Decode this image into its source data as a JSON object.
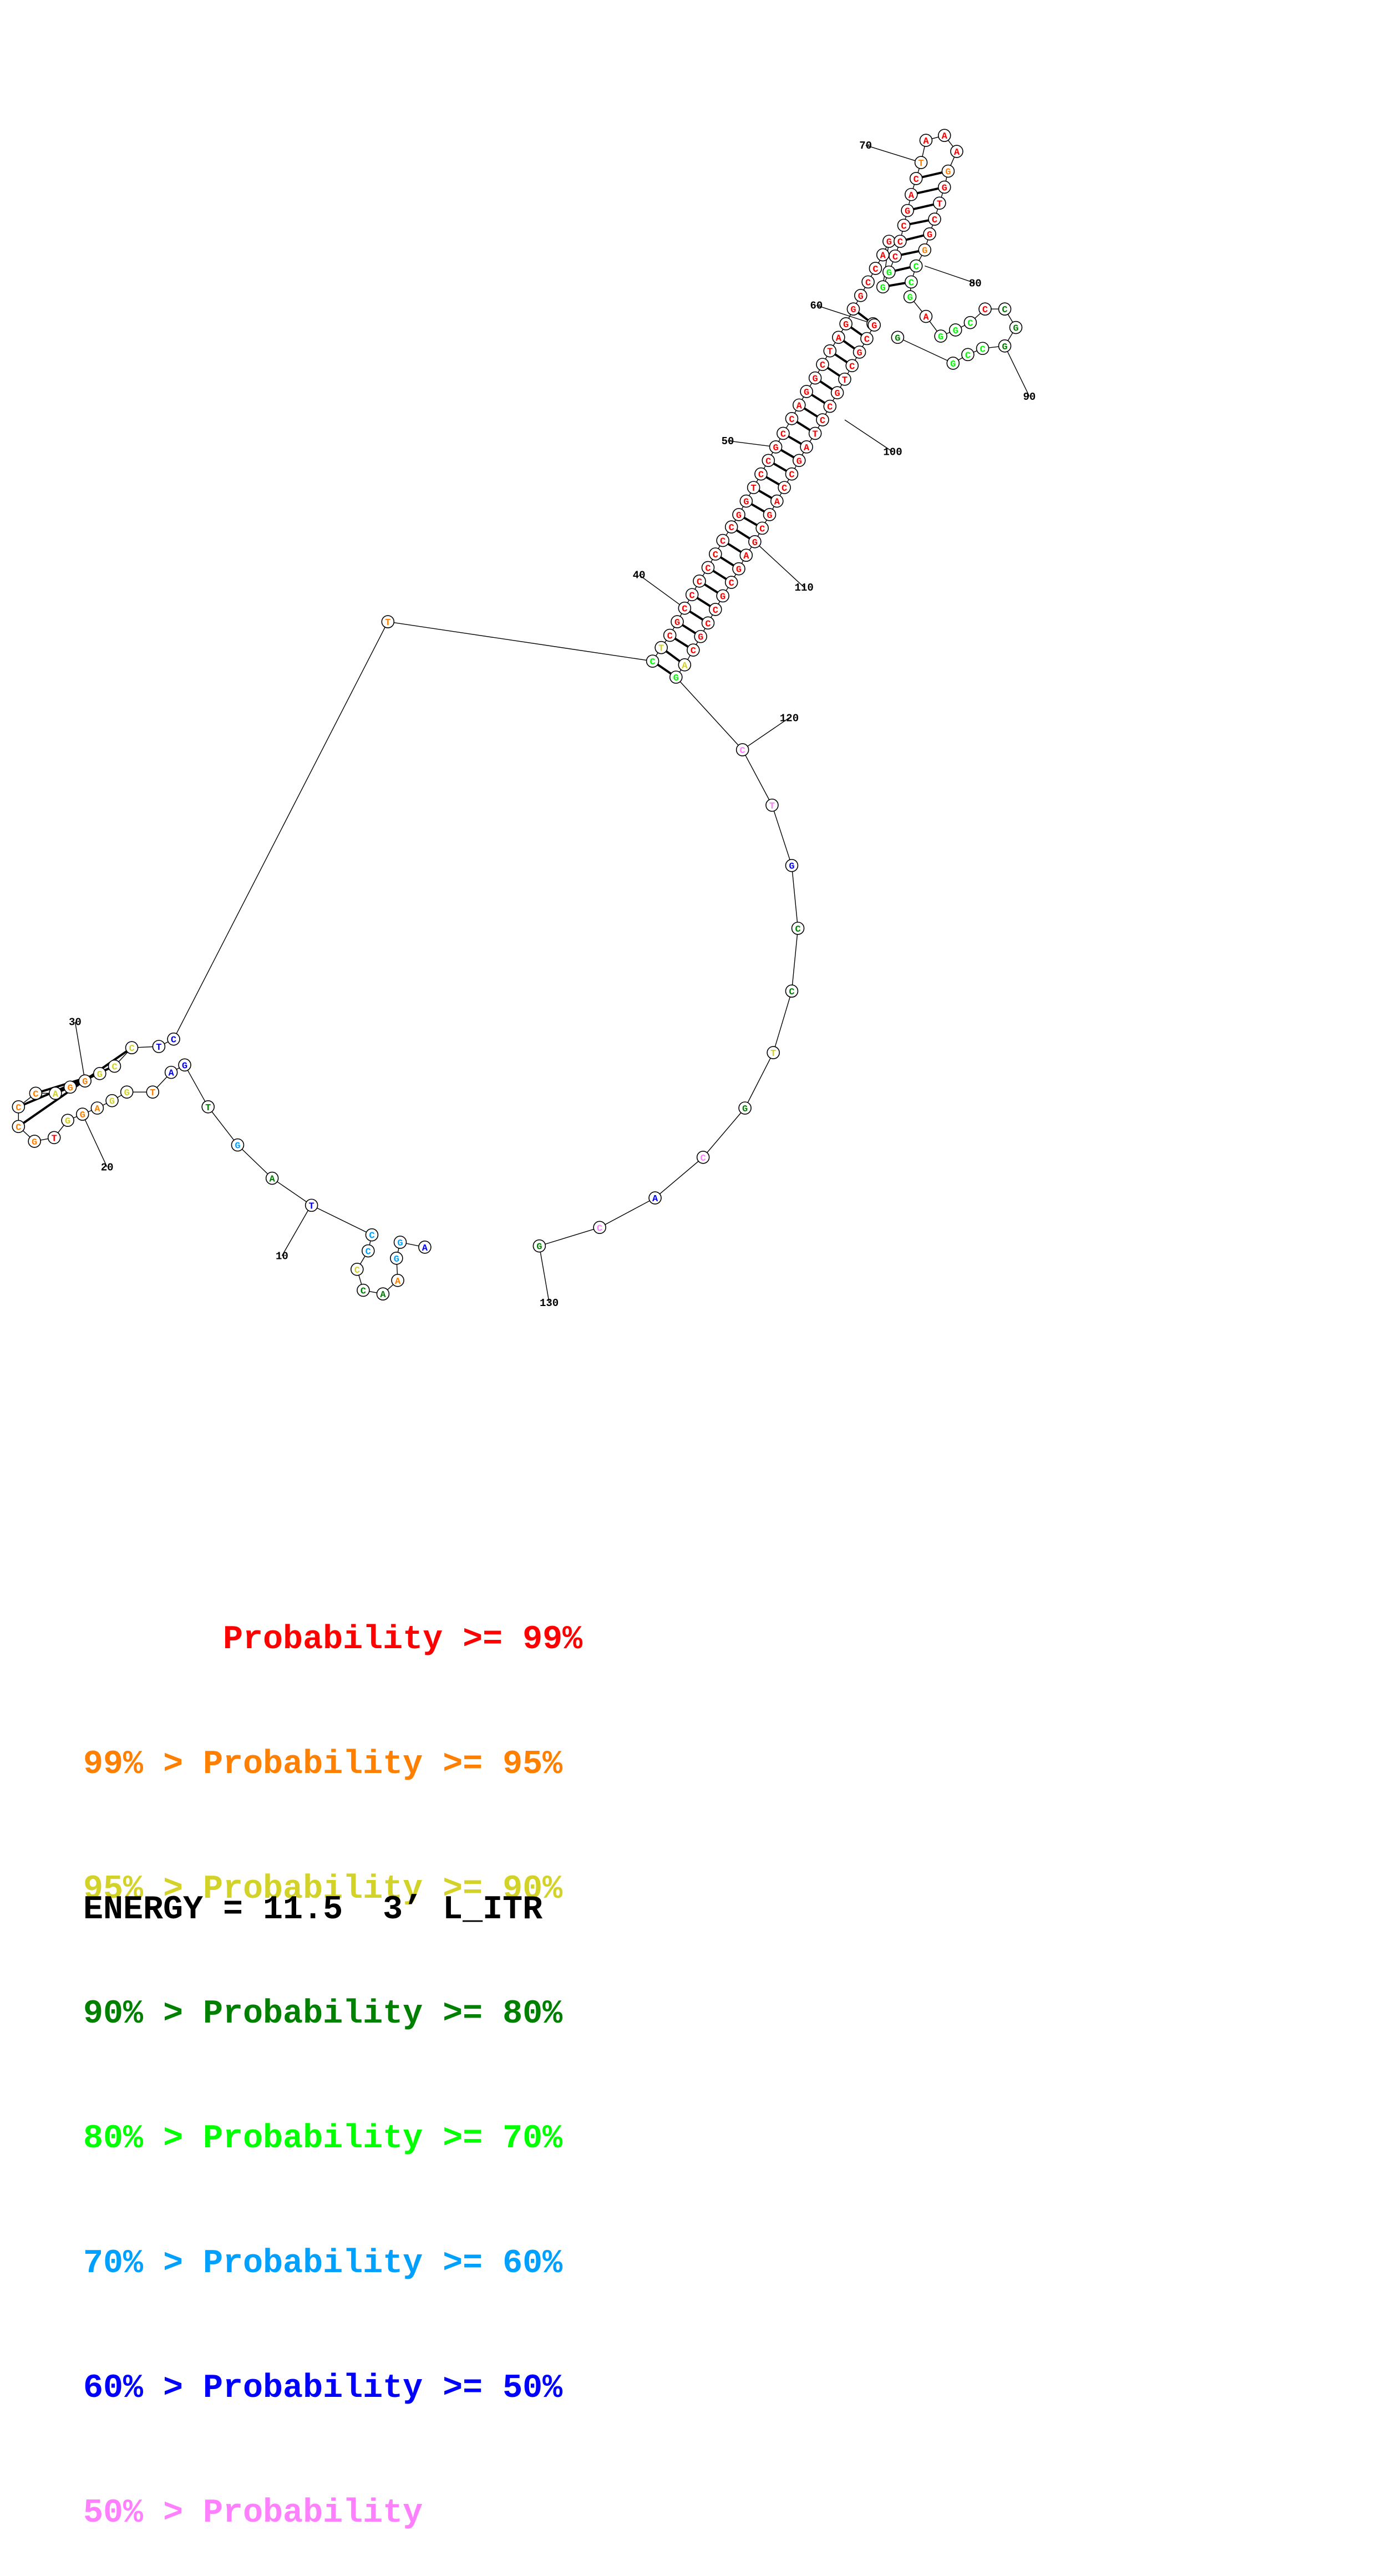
{
  "colors": {
    "p99": "#ff0000",
    "p95": "#ff8000",
    "p90": "#d2d228",
    "p80": "#008000",
    "p70": "#00ff00",
    "p60": "#00a0ff",
    "p50": "#0000ff",
    "plow": "#ff80ff"
  },
  "index_labels": [
    "10",
    "20",
    "30",
    "40",
    "50",
    "60",
    "70",
    "80",
    "90",
    "100",
    "110",
    "120",
    "130"
  ],
  "legend": [
    {
      "text": "       Probability >= 99%",
      "color_key": "p99"
    },
    {
      "text": "99% > Probability >= 95%",
      "color_key": "p95"
    },
    {
      "text": "95% > Probability >= 90%",
      "color_key": "p90"
    },
    {
      "text": "90% > Probability >= 80%",
      "color_key": "p80"
    },
    {
      "text": "80% > Probability >= 70%",
      "color_key": "p70"
    },
    {
      "text": "70% > Probability >= 60%",
      "color_key": "p60"
    },
    {
      "text": "60% > Probability >= 50%",
      "color_key": "p50"
    },
    {
      "text": "50% > Probability",
      "color_key": "plow"
    }
  ],
  "energy_text": "ENERGY = 11.5  3’ L_ITR"
}
